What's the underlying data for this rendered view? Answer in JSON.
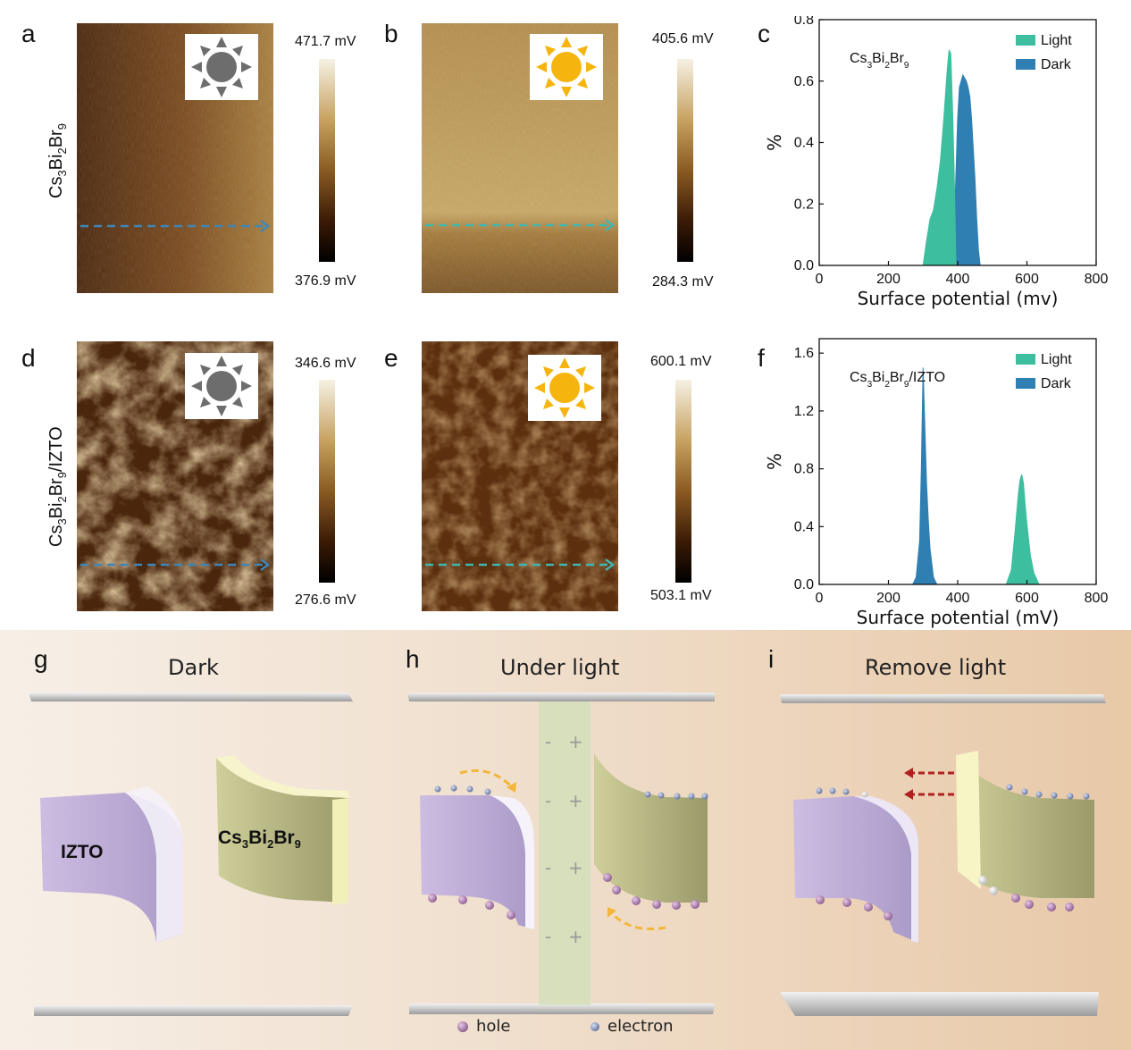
{
  "panel_letters": {
    "a": "a",
    "b": "b",
    "c": "c",
    "d": "d",
    "e": "e",
    "f": "f",
    "g": "g",
    "h": "h",
    "i": "i"
  },
  "sample_labels": {
    "row1": {
      "base": "Cs",
      "sub1": "3",
      "mid": "Bi",
      "sub2": "2",
      "end": "Br",
      "sub3": "9",
      "suffix": ""
    },
    "row2": {
      "base": "Cs",
      "sub1": "3",
      "mid": "Bi",
      "sub2": "2",
      "end": "Br",
      "sub3": "9",
      "suffix": "/IZTO"
    }
  },
  "colorbars": {
    "a": {
      "top": "471.7 mV",
      "bottom": "376.9 mV"
    },
    "b": {
      "top": "405.6 mV",
      "bottom": "284.3 mV"
    },
    "d": {
      "top": "346.6 mV",
      "bottom": "276.6 mV"
    },
    "e": {
      "top": "600.1 mV",
      "bottom": "503.1 mV"
    }
  },
  "icons": {
    "a": "dark-sun-icon",
    "b": "bright-sun-icon",
    "d": "dark-sun-icon",
    "e": "bright-sun-icon"
  },
  "colors": {
    "dark": "#2f7fb2",
    "light": "#3dbf9f",
    "kpfm_low": "#3a1e08",
    "kpfm_mid": "#9a6a2a",
    "kpfm_high": "#f2ead8",
    "arrow_dark": "#3f86b8",
    "arrow_light": "#3fb6b0"
  },
  "chart_data": [
    {
      "id": "c",
      "type": "area",
      "annotation": {
        "base": "Cs",
        "sub1": "3",
        "mid": "Bi",
        "sub2": "2",
        "end": "Br",
        "sub3": "9",
        "suffix": ""
      },
      "xlabel": "Surface potential (mv)",
      "ylabel": "%",
      "xlim": [
        0,
        800
      ],
      "ylim": [
        0,
        0.8
      ],
      "xticks": [
        "0",
        "200",
        "400",
        "600",
        "800"
      ],
      "yticks": [
        "0.0",
        "0.2",
        "0.4",
        "0.6",
        "0.8"
      ],
      "legend_position": "top-right",
      "series": [
        {
          "name": "Dark",
          "x": [
            380,
            390,
            395,
            400,
            405,
            410,
            415,
            420,
            425,
            430,
            435,
            440,
            445,
            450,
            455,
            460,
            465
          ],
          "y": [
            0.0,
            0.12,
            0.3,
            0.48,
            0.58,
            0.6,
            0.62,
            0.61,
            0.6,
            0.58,
            0.55,
            0.48,
            0.38,
            0.28,
            0.15,
            0.05,
            0.0
          ]
        },
        {
          "name": "Light",
          "x": [
            300,
            310,
            320,
            330,
            340,
            350,
            360,
            365,
            370,
            375,
            380,
            385,
            390,
            395
          ],
          "y": [
            0.0,
            0.08,
            0.15,
            0.18,
            0.25,
            0.34,
            0.48,
            0.56,
            0.64,
            0.7,
            0.69,
            0.52,
            0.3,
            0.0
          ]
        }
      ]
    },
    {
      "id": "f",
      "type": "area",
      "annotation": {
        "base": "Cs",
        "sub1": "3",
        "mid": "Bi",
        "sub2": "2",
        "end": "Br",
        "sub3": "9",
        "suffix": "/IZTO"
      },
      "xlabel": "Surface potential (mV)",
      "ylabel": "%",
      "xlim": [
        0,
        800
      ],
      "ylim": [
        0,
        1.7
      ],
      "xticks": [
        "0",
        "200",
        "400",
        "600",
        "800"
      ],
      "yticks": [
        "0.0",
        "0.4",
        "0.8",
        "1.2",
        "1.6"
      ],
      "legend_position": "top-right",
      "series": [
        {
          "name": "Dark",
          "x": [
            270,
            280,
            290,
            295,
            300,
            305,
            310,
            315,
            320,
            330,
            340
          ],
          "y": [
            0.0,
            0.05,
            0.3,
            0.8,
            1.5,
            1.1,
            0.7,
            0.45,
            0.25,
            0.05,
            0.0
          ]
        },
        {
          "name": "Light",
          "x": [
            540,
            555,
            565,
            575,
            580,
            585,
            590,
            595,
            600,
            610,
            620,
            635
          ],
          "y": [
            0.0,
            0.1,
            0.35,
            0.62,
            0.72,
            0.76,
            0.7,
            0.55,
            0.42,
            0.2,
            0.08,
            0.0
          ]
        }
      ]
    }
  ],
  "schematic": {
    "g": {
      "title": "Dark",
      "izto_label": "IZTO",
      "cs_label": {
        "base": "Cs",
        "sub1": "3",
        "mid": "Bi",
        "sub2": "2",
        "end": "Br",
        "sub3": "9"
      }
    },
    "h": {
      "title": "Under light",
      "minus": "-",
      "plus": "+"
    },
    "i": {
      "title": "Remove light"
    },
    "legend": {
      "hole": "hole",
      "electron": "electron"
    }
  }
}
